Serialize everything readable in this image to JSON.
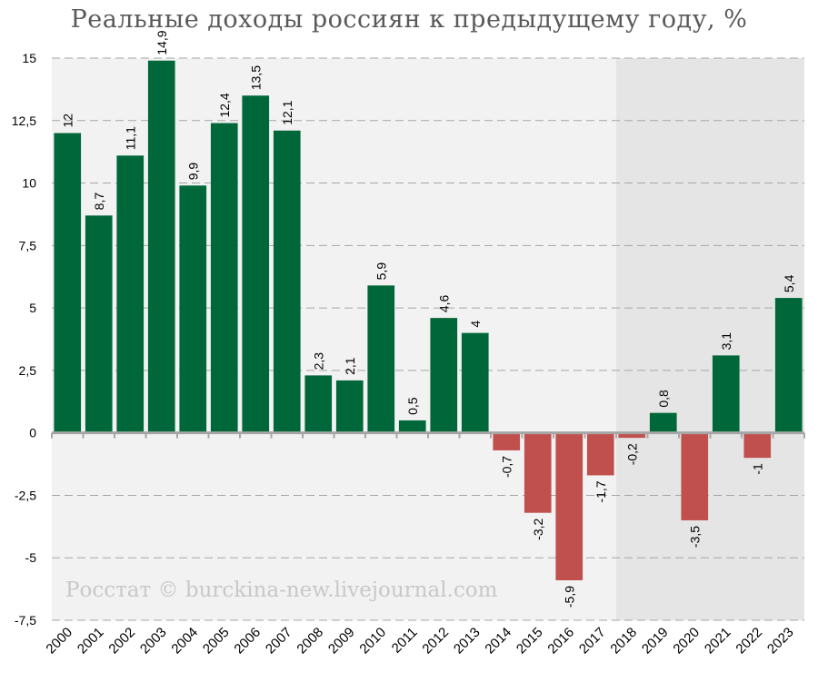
{
  "chart_data": {
    "type": "bar",
    "title": "Реальные доходы россиян к предыдущему году, %",
    "xlabel": "",
    "ylabel": "",
    "categories": [
      "2000",
      "2001",
      "2002",
      "2003",
      "2004",
      "2005",
      "2006",
      "2007",
      "2008",
      "2009",
      "2010",
      "2011",
      "2012",
      "2013",
      "2014",
      "2015",
      "2016",
      "2017",
      "2018",
      "2019",
      "2020",
      "2021",
      "2022",
      "2023"
    ],
    "values": [
      12,
      8.7,
      11.1,
      14.9,
      9.9,
      12.4,
      13.5,
      12.1,
      2.3,
      2.1,
      5.9,
      0.5,
      4.6,
      4,
      -0.7,
      -3.2,
      -5.9,
      -1.7,
      -0.2,
      0.8,
      -3.5,
      3.1,
      -1,
      5.4
    ],
    "data_labels": [
      "12",
      "8,7",
      "11,1",
      "14,9",
      "9,9",
      "12,4",
      "13,5",
      "12,1",
      "2,3",
      "2,1",
      "5,9",
      "0,5",
      "4,6",
      "4",
      "-0,7",
      "-3,2",
      "-5,9",
      "-1,7",
      "-0,2",
      "0,8",
      "-3,5",
      "3,1",
      "-1",
      "5,4"
    ],
    "ylim": [
      -7.5,
      15
    ],
    "y_ticks": [
      15,
      12.5,
      10,
      7.5,
      5,
      2.5,
      0,
      -2.5,
      -5,
      -7.5
    ],
    "y_tick_labels": [
      "15",
      "12,5",
      "10",
      "7,5",
      "5",
      "2,5",
      "0",
      "-2,5",
      "-5",
      "-7,5"
    ],
    "grid": true,
    "shaded_from_category": "2018",
    "watermark": "Росстат © burckina-new.livejournal.com",
    "colors": {
      "positive": "#00673a",
      "negative": "#c0504d",
      "background": "#f2f2f2",
      "shaded_background": "#e5e5e5",
      "grid": "#a6a6a6",
      "axis": "#a6a6a6"
    }
  }
}
